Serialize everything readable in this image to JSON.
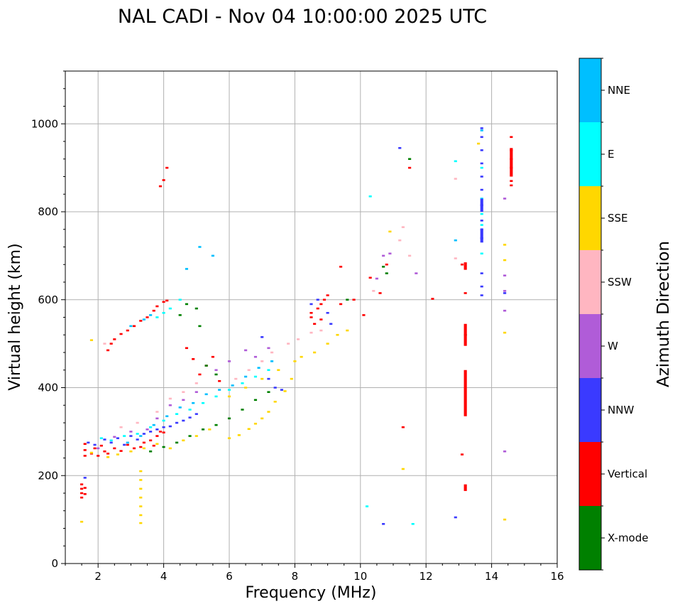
{
  "chart_data": {
    "type": "scatter",
    "title": "NAL CADI - Nov 04 10:00:00 2025 UTC",
    "xlabel": "Frequency (MHz)",
    "ylabel": "Virtual height (km)",
    "xlim": [
      1,
      16
    ],
    "ylim": [
      0,
      1120
    ],
    "xticks": [
      2,
      4,
      6,
      8,
      10,
      12,
      14,
      16
    ],
    "yticks": [
      0,
      200,
      400,
      600,
      800,
      1000
    ],
    "grid": true,
    "colorbar": {
      "label": "Azimuth Direction",
      "entries": [
        {
          "name": "X-mode",
          "color": "#008000"
        },
        {
          "name": "Vertical",
          "color": "#ff0000"
        },
        {
          "name": "NNW",
          "color": "#3a3aff"
        },
        {
          "name": "W",
          "color": "#b05cd8"
        },
        {
          "name": "SSW",
          "color": "#ffb6c1"
        },
        {
          "name": "SSE",
          "color": "#ffd700"
        },
        {
          "name": "E",
          "color": "#00ffff"
        },
        {
          "name": "NNE",
          "color": "#00bfff"
        }
      ]
    },
    "cell_size": {
      "df": 0.1,
      "dh": 6
    },
    "series": [
      {
        "name": "Vertical",
        "points": [
          [
            1.5,
            150
          ],
          [
            1.5,
            160
          ],
          [
            1.5,
            170
          ],
          [
            1.5,
            180
          ],
          [
            1.6,
            158
          ],
          [
            1.6,
            172
          ],
          [
            1.6,
            245
          ],
          [
            1.6,
            258
          ],
          [
            1.6,
            272
          ],
          [
            1.8,
            250
          ],
          [
            1.9,
            262
          ],
          [
            2.0,
            245
          ],
          [
            2.1,
            268
          ],
          [
            2.2,
            255
          ],
          [
            2.3,
            250
          ],
          [
            2.5,
            262
          ],
          [
            2.7,
            256
          ],
          [
            2.9,
            270
          ],
          [
            3.1,
            262
          ],
          [
            3.3,
            265
          ],
          [
            3.4,
            275
          ],
          [
            3.6,
            280
          ],
          [
            3.7,
            268
          ],
          [
            3.8,
            290
          ],
          [
            3.9,
            300
          ],
          [
            4.0,
            298
          ],
          [
            2.3,
            485
          ],
          [
            2.4,
            500
          ],
          [
            2.5,
            510
          ],
          [
            2.7,
            522
          ],
          [
            2.9,
            530
          ],
          [
            3.1,
            540
          ],
          [
            3.3,
            552
          ],
          [
            3.5,
            560
          ],
          [
            3.7,
            575
          ],
          [
            3.8,
            585
          ],
          [
            4.0,
            595
          ],
          [
            4.1,
            598
          ],
          [
            4.7,
            490
          ],
          [
            4.9,
            465
          ],
          [
            5.1,
            430
          ],
          [
            5.3,
            450
          ],
          [
            5.7,
            415
          ],
          [
            5.5,
            470
          ],
          [
            8.5,
            560
          ],
          [
            8.5,
            570
          ],
          [
            8.7,
            580
          ],
          [
            8.8,
            590
          ],
          [
            8.9,
            600
          ],
          [
            9.0,
            610
          ],
          [
            8.6,
            545
          ],
          [
            8.8,
            555
          ],
          [
            9.4,
            590
          ],
          [
            9.4,
            675
          ],
          [
            9.8,
            600
          ],
          [
            10.1,
            565
          ],
          [
            10.3,
            650
          ],
          [
            10.6,
            615
          ],
          [
            10.8,
            680
          ],
          [
            11.3,
            310
          ],
          [
            12.2,
            602
          ],
          [
            13.1,
            248
          ],
          [
            13.2,
            615
          ],
          [
            13.1,
            680
          ],
          [
            11.5,
            900
          ],
          [
            14.6,
            970
          ],
          [
            14.6,
            940
          ],
          [
            14.6,
            920
          ],
          [
            14.6,
            900
          ],
          [
            14.6,
            870
          ],
          [
            14.6,
            860
          ],
          [
            4.1,
            900
          ],
          [
            3.9,
            858
          ],
          [
            4.0,
            872
          ]
        ]
      },
      {
        "name": "NNW",
        "points": [
          [
            1.7,
            275
          ],
          [
            1.9,
            270
          ],
          [
            2.2,
            282
          ],
          [
            2.4,
            275
          ],
          [
            2.6,
            285
          ],
          [
            2.8,
            270
          ],
          [
            3.0,
            290
          ],
          [
            3.2,
            282
          ],
          [
            3.4,
            295
          ],
          [
            3.6,
            300
          ],
          [
            3.8,
            305
          ],
          [
            4.0,
            310
          ],
          [
            4.2,
            312
          ],
          [
            4.4,
            320
          ],
          [
            4.6,
            325
          ],
          [
            4.8,
            332
          ],
          [
            5.0,
            340
          ],
          [
            7.0,
            515
          ],
          [
            7.2,
            420
          ],
          [
            7.4,
            400
          ],
          [
            7.6,
            395
          ],
          [
            8.5,
            590
          ],
          [
            8.7,
            600
          ],
          [
            9.0,
            570
          ],
          [
            13.7,
            940
          ],
          [
            13.7,
            910
          ],
          [
            13.7,
            880
          ],
          [
            13.7,
            815
          ],
          [
            13.7,
            780
          ],
          [
            13.7,
            760
          ],
          [
            13.7,
            740
          ],
          [
            13.7,
            660
          ],
          [
            13.7,
            630
          ],
          [
            13.7,
            610
          ],
          [
            11.2,
            945
          ],
          [
            14.4,
            615
          ],
          [
            12.9,
            105
          ],
          [
            10.7,
            90
          ],
          [
            13.7,
            990
          ],
          [
            13.7,
            970
          ],
          [
            13.7,
            850
          ],
          [
            9.1,
            545
          ],
          [
            1.6,
            195
          ]
        ]
      },
      {
        "name": "W",
        "points": [
          [
            2.0,
            262
          ],
          [
            2.5,
            288
          ],
          [
            3.0,
            300
          ],
          [
            3.5,
            305
          ],
          [
            3.8,
            330
          ],
          [
            4.2,
            360
          ],
          [
            4.6,
            372
          ],
          [
            5.0,
            390
          ],
          [
            5.6,
            440
          ],
          [
            6.0,
            460
          ],
          [
            6.5,
            485
          ],
          [
            6.8,
            470
          ],
          [
            7.2,
            490
          ],
          [
            10.7,
            700
          ],
          [
            10.9,
            705
          ],
          [
            14.4,
            575
          ],
          [
            14.4,
            655
          ],
          [
            14.4,
            620
          ],
          [
            14.4,
            830
          ],
          [
            14.4,
            255
          ],
          [
            11.7,
            660
          ],
          [
            10.5,
            648
          ]
        ]
      },
      {
        "name": "SSW",
        "points": [
          [
            2.7,
            310
          ],
          [
            3.2,
            320
          ],
          [
            3.8,
            345
          ],
          [
            4.2,
            375
          ],
          [
            4.6,
            390
          ],
          [
            5.0,
            410
          ],
          [
            6.2,
            420
          ],
          [
            6.6,
            440
          ],
          [
            7.0,
            460
          ],
          [
            7.3,
            480
          ],
          [
            7.8,
            500
          ],
          [
            8.1,
            510
          ],
          [
            8.5,
            525
          ],
          [
            8.8,
            530
          ],
          [
            11.3,
            765
          ],
          [
            11.2,
            735
          ],
          [
            11.5,
            700
          ],
          [
            12.9,
            875
          ],
          [
            12.9,
            694
          ],
          [
            2.2,
            500
          ],
          [
            10.4,
            620
          ]
        ]
      },
      {
        "name": "SSE",
        "points": [
          [
            1.8,
            252
          ],
          [
            2.3,
            242
          ],
          [
            2.6,
            248
          ],
          [
            3.0,
            255
          ],
          [
            3.4,
            262
          ],
          [
            3.8,
            272
          ],
          [
            4.2,
            262
          ],
          [
            4.6,
            280
          ],
          [
            5.0,
            290
          ],
          [
            5.4,
            305
          ],
          [
            6.0,
            285
          ],
          [
            6.3,
            292
          ],
          [
            6.6,
            306
          ],
          [
            6.8,
            318
          ],
          [
            7.0,
            330
          ],
          [
            7.2,
            345
          ],
          [
            7.4,
            368
          ],
          [
            7.7,
            392
          ],
          [
            7.9,
            420
          ],
          [
            8.2,
            470
          ],
          [
            8.6,
            480
          ],
          [
            9.0,
            500
          ],
          [
            9.3,
            520
          ],
          [
            6.0,
            380
          ],
          [
            6.5,
            400
          ],
          [
            7.0,
            420
          ],
          [
            7.5,
            440
          ],
          [
            8.0,
            460
          ],
          [
            9.6,
            530
          ],
          [
            3.3,
            92
          ],
          [
            3.3,
            110
          ],
          [
            3.3,
            130
          ],
          [
            3.3,
            150
          ],
          [
            3.3,
            170
          ],
          [
            3.3,
            190
          ],
          [
            3.3,
            210
          ],
          [
            1.5,
            95
          ],
          [
            13.6,
            955
          ],
          [
            14.4,
            725
          ],
          [
            14.4,
            690
          ],
          [
            14.4,
            525
          ],
          [
            14.4,
            100
          ],
          [
            11.3,
            215
          ],
          [
            10.9,
            755
          ],
          [
            1.8,
            508
          ]
        ]
      },
      {
        "name": "E",
        "points": [
          [
            2.1,
            285
          ],
          [
            2.4,
            280
          ],
          [
            2.8,
            290
          ],
          [
            3.2,
            295
          ],
          [
            3.6,
            310
          ],
          [
            4.0,
            325
          ],
          [
            4.4,
            340
          ],
          [
            4.8,
            350
          ],
          [
            5.2,
            365
          ],
          [
            5.6,
            380
          ],
          [
            6.0,
            395
          ],
          [
            6.4,
            410
          ],
          [
            6.8,
            425
          ],
          [
            7.2,
            440
          ],
          [
            3.8,
            560
          ],
          [
            4.0,
            570
          ],
          [
            4.2,
            580
          ],
          [
            4.5,
            600
          ],
          [
            10.3,
            835
          ],
          [
            13.7,
            900
          ],
          [
            13.7,
            830
          ],
          [
            13.7,
            795
          ],
          [
            13.7,
            770
          ],
          [
            10.2,
            130
          ],
          [
            11.6,
            90
          ],
          [
            12.9,
            915
          ],
          [
            13.7,
            705
          ]
        ]
      },
      {
        "name": "NNE",
        "points": [
          [
            2.9,
            275
          ],
          [
            3.3,
            290
          ],
          [
            3.7,
            315
          ],
          [
            4.1,
            335
          ],
          [
            4.5,
            355
          ],
          [
            4.9,
            365
          ],
          [
            5.3,
            385
          ],
          [
            5.7,
            395
          ],
          [
            6.1,
            405
          ],
          [
            6.5,
            425
          ],
          [
            6.9,
            445
          ],
          [
            7.3,
            460
          ],
          [
            3.0,
            540
          ],
          [
            3.4,
            555
          ],
          [
            3.6,
            565
          ],
          [
            5.1,
            720
          ],
          [
            5.5,
            700
          ],
          [
            4.7,
            670
          ],
          [
            12.9,
            735
          ],
          [
            13.7,
            985
          ]
        ]
      },
      {
        "name": "X-mode",
        "points": [
          [
            3.6,
            255
          ],
          [
            4.0,
            265
          ],
          [
            4.4,
            275
          ],
          [
            4.8,
            290
          ],
          [
            5.2,
            305
          ],
          [
            5.6,
            315
          ],
          [
            6.0,
            330
          ],
          [
            6.4,
            350
          ],
          [
            6.8,
            372
          ],
          [
            7.2,
            390
          ],
          [
            4.5,
            565
          ],
          [
            4.7,
            590
          ],
          [
            5.0,
            580
          ],
          [
            5.3,
            450
          ],
          [
            5.6,
            430
          ],
          [
            5.1,
            540
          ],
          [
            9.6,
            600
          ],
          [
            10.8,
            660
          ],
          [
            11.5,
            920
          ],
          [
            13.2,
            520
          ],
          [
            10.7,
            675
          ]
        ]
      }
    ],
    "bars": [
      {
        "name": "Vertical",
        "x": 13.2,
        "y0": 165,
        "y1": 180
      },
      {
        "name": "Vertical",
        "x": 13.2,
        "y0": 335,
        "y1": 440
      },
      {
        "name": "Vertical",
        "x": 13.2,
        "y0": 495,
        "y1": 545
      },
      {
        "name": "Vertical",
        "x": 13.2,
        "y0": 668,
        "y1": 685
      },
      {
        "name": "NNW",
        "x": 13.7,
        "y0": 730,
        "y1": 760
      },
      {
        "name": "NNW",
        "x": 13.7,
        "y0": 800,
        "y1": 830
      },
      {
        "name": "Vertical",
        "x": 14.6,
        "y0": 880,
        "y1": 945
      }
    ]
  }
}
